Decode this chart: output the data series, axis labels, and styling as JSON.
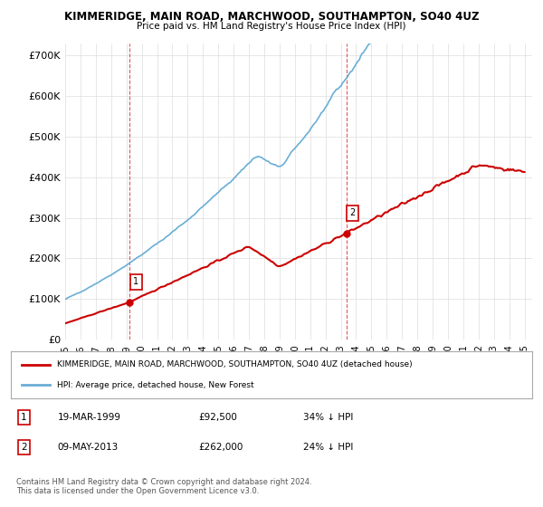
{
  "title1": "KIMMERIDGE, MAIN ROAD, MARCHWOOD, SOUTHAMPTON, SO40 4UZ",
  "title2": "Price paid vs. HM Land Registry's House Price Index (HPI)",
  "yticks": [
    0,
    100000,
    200000,
    300000,
    400000,
    500000,
    600000,
    700000
  ],
  "ytick_labels": [
    "£0",
    "£100K",
    "£200K",
    "£300K",
    "£400K",
    "£500K",
    "£600K",
    "£700K"
  ],
  "xtick_years": [
    1995,
    1996,
    1997,
    1998,
    1999,
    2000,
    2001,
    2002,
    2003,
    2004,
    2005,
    2006,
    2007,
    2008,
    2009,
    2010,
    2011,
    2012,
    2013,
    2014,
    2015,
    2016,
    2017,
    2018,
    2019,
    2020,
    2021,
    2022,
    2023,
    2024,
    2025
  ],
  "hpi_color": "#6aaed6",
  "price_color": "#cc0000",
  "vline_color": "#cc0000",
  "point1_year": 1999.22,
  "point1_value": 92500,
  "point1_label": "1",
  "point2_year": 2013.36,
  "point2_value": 262000,
  "point2_label": "2",
  "legend_line1": "KIMMERIDGE, MAIN ROAD, MARCHWOOD, SOUTHAMPTON, SO40 4UZ (detached house)",
  "legend_line2": "HPI: Average price, detached house, New Forest",
  "table_row1": [
    "1",
    "19-MAR-1999",
    "£92,500",
    "34% ↓ HPI"
  ],
  "table_row2": [
    "2",
    "09-MAY-2013",
    "£262,000",
    "24% ↓ HPI"
  ],
  "footnote": "Contains HM Land Registry data © Crown copyright and database right 2024.\nThis data is licensed under the Open Government Licence v3.0.",
  "bg_color": "#ffffff",
  "grid_color": "#dddddd",
  "ylim": [
    0,
    730000
  ],
  "xlim_start": 1995,
  "xlim_end": 2025.5
}
